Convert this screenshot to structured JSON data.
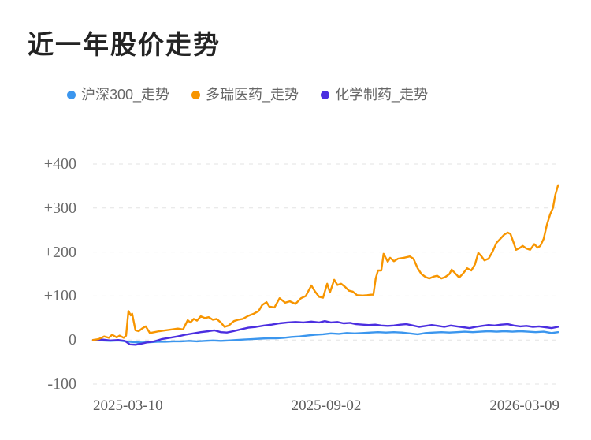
{
  "header": {
    "title": "近一年股价走势"
  },
  "colors": {
    "background": "#ffffff",
    "title_text": "#232323",
    "legend_text": "#666666",
    "axis_text": "#6b6b6b",
    "gridline": "#e3e3e3",
    "series_csi300": "#3B96EE",
    "series_duorui": "#F79500",
    "series_chempharma": "#4B2EE0"
  },
  "chart_data": {
    "type": "line",
    "title": "近一年股价走势",
    "unit": "percent change since period start",
    "legend_position": "top",
    "grid": {
      "horizontal": true,
      "vertical": false,
      "style": "dashed"
    },
    "x_axis": {
      "tick_labels": [
        "2025-03-10",
        "2025-09-02",
        "2026-03-09"
      ],
      "note": "t values in series are 0..1 fractions of the date range 2025-03-10 to 2026-03-09"
    },
    "y_axis": {
      "tick_values": [
        400,
        300,
        200,
        100,
        0,
        -100
      ],
      "tick_labels": [
        "+400",
        "+300",
        "+200",
        "+100",
        "0",
        "-100"
      ],
      "lim": [
        -100,
        400
      ]
    },
    "series": [
      {
        "name": "沪深300_走势",
        "color": "#3B96EE",
        "points": [
          [
            0,
            0
          ],
          [
            0.02,
            -1
          ],
          [
            0.037,
            -2
          ],
          [
            0.054,
            -1
          ],
          [
            0.071,
            -3
          ],
          [
            0.088,
            -5
          ],
          [
            0.105,
            -6
          ],
          [
            0.122,
            -5
          ],
          [
            0.139,
            -4
          ],
          [
            0.155,
            -4
          ],
          [
            0.172,
            -3
          ],
          [
            0.189,
            -3
          ],
          [
            0.206,
            -2
          ],
          [
            0.223,
            -3
          ],
          [
            0.24,
            -2
          ],
          [
            0.257,
            -1
          ],
          [
            0.274,
            -2
          ],
          [
            0.291,
            -1
          ],
          [
            0.307,
            0
          ],
          [
            0.324,
            1
          ],
          [
            0.341,
            2
          ],
          [
            0.358,
            3
          ],
          [
            0.375,
            4
          ],
          [
            0.392,
            4
          ],
          [
            0.409,
            5
          ],
          [
            0.426,
            7
          ],
          [
            0.443,
            8
          ],
          [
            0.459,
            10
          ],
          [
            0.476,
            12
          ],
          [
            0.493,
            13
          ],
          [
            0.51,
            15
          ],
          [
            0.527,
            14
          ],
          [
            0.544,
            16
          ],
          [
            0.561,
            15
          ],
          [
            0.578,
            16
          ],
          [
            0.595,
            17
          ],
          [
            0.611,
            18
          ],
          [
            0.628,
            17
          ],
          [
            0.645,
            18
          ],
          [
            0.662,
            17
          ],
          [
            0.679,
            15
          ],
          [
            0.696,
            13
          ],
          [
            0.713,
            16
          ],
          [
            0.73,
            17
          ],
          [
            0.747,
            18
          ],
          [
            0.764,
            17
          ],
          [
            0.78,
            18
          ],
          [
            0.797,
            19
          ],
          [
            0.814,
            18
          ],
          [
            0.831,
            19
          ],
          [
            0.848,
            20
          ],
          [
            0.865,
            19
          ],
          [
            0.882,
            20
          ],
          [
            0.899,
            19
          ],
          [
            0.916,
            20
          ],
          [
            0.932,
            19
          ],
          [
            0.949,
            18
          ],
          [
            0.966,
            19
          ],
          [
            0.983,
            16
          ],
          [
            0.997,
            18
          ]
        ]
      },
      {
        "name": "多瑞医药_走势",
        "color": "#F79500",
        "points": [
          [
            0,
            0
          ],
          [
            0.012,
            2
          ],
          [
            0.024,
            8
          ],
          [
            0.034,
            5
          ],
          [
            0.041,
            12
          ],
          [
            0.051,
            6
          ],
          [
            0.057,
            10
          ],
          [
            0.066,
            5
          ],
          [
            0.071,
            10
          ],
          [
            0.076,
            66
          ],
          [
            0.081,
            56
          ],
          [
            0.084,
            60
          ],
          [
            0.091,
            22
          ],
          [
            0.098,
            20
          ],
          [
            0.105,
            26
          ],
          [
            0.113,
            31
          ],
          [
            0.122,
            16
          ],
          [
            0.132,
            18
          ],
          [
            0.142,
            20
          ],
          [
            0.155,
            22
          ],
          [
            0.169,
            24
          ],
          [
            0.182,
            26
          ],
          [
            0.193,
            24
          ],
          [
            0.203,
            45
          ],
          [
            0.209,
            40
          ],
          [
            0.216,
            48
          ],
          [
            0.223,
            44
          ],
          [
            0.231,
            54
          ],
          [
            0.24,
            50
          ],
          [
            0.248,
            52
          ],
          [
            0.257,
            46
          ],
          [
            0.265,
            48
          ],
          [
            0.274,
            40
          ],
          [
            0.282,
            30
          ],
          [
            0.291,
            33
          ],
          [
            0.302,
            43
          ],
          [
            0.311,
            46
          ],
          [
            0.321,
            48
          ],
          [
            0.333,
            55
          ],
          [
            0.345,
            60
          ],
          [
            0.355,
            66
          ],
          [
            0.363,
            80
          ],
          [
            0.372,
            86
          ],
          [
            0.378,
            76
          ],
          [
            0.389,
            74
          ],
          [
            0.4,
            95
          ],
          [
            0.412,
            85
          ],
          [
            0.422,
            88
          ],
          [
            0.434,
            82
          ],
          [
            0.446,
            95
          ],
          [
            0.456,
            100
          ],
          [
            0.468,
            124
          ],
          [
            0.476,
            110
          ],
          [
            0.485,
            98
          ],
          [
            0.493,
            96
          ],
          [
            0.502,
            128
          ],
          [
            0.508,
            108
          ],
          [
            0.517,
            137
          ],
          [
            0.524,
            125
          ],
          [
            0.532,
            128
          ],
          [
            0.541,
            120
          ],
          [
            0.549,
            112
          ],
          [
            0.557,
            110
          ],
          [
            0.566,
            102
          ],
          [
            0.578,
            101
          ],
          [
            0.588,
            102
          ],
          [
            0.596,
            103
          ],
          [
            0.601,
            103
          ],
          [
            0.606,
            140
          ],
          [
            0.611,
            158
          ],
          [
            0.618,
            158
          ],
          [
            0.623,
            196
          ],
          [
            0.632,
            178
          ],
          [
            0.637,
            187
          ],
          [
            0.645,
            179
          ],
          [
            0.654,
            185
          ],
          [
            0.666,
            187
          ],
          [
            0.679,
            190
          ],
          [
            0.687,
            185
          ],
          [
            0.696,
            163
          ],
          [
            0.704,
            150
          ],
          [
            0.713,
            143
          ],
          [
            0.721,
            140
          ],
          [
            0.73,
            144
          ],
          [
            0.738,
            146
          ],
          [
            0.747,
            140
          ],
          [
            0.755,
            143
          ],
          [
            0.764,
            150
          ],
          [
            0.769,
            160
          ],
          [
            0.777,
            151
          ],
          [
            0.785,
            142
          ],
          [
            0.794,
            152
          ],
          [
            0.802,
            163
          ],
          [
            0.811,
            158
          ],
          [
            0.819,
            172
          ],
          [
            0.826,
            198
          ],
          [
            0.833,
            190
          ],
          [
            0.839,
            181
          ],
          [
            0.848,
            185
          ],
          [
            0.856,
            200
          ],
          [
            0.865,
            221
          ],
          [
            0.873,
            230
          ],
          [
            0.882,
            240
          ],
          [
            0.889,
            244
          ],
          [
            0.895,
            241
          ],
          [
            0.902,
            220
          ],
          [
            0.907,
            205
          ],
          [
            0.916,
            210
          ],
          [
            0.921,
            214
          ],
          [
            0.929,
            208
          ],
          [
            0.937,
            205
          ],
          [
            0.946,
            218
          ],
          [
            0.953,
            210
          ],
          [
            0.959,
            214
          ],
          [
            0.966,
            230
          ],
          [
            0.973,
            262
          ],
          [
            0.98,
            286
          ],
          [
            0.986,
            300
          ],
          [
            0.991,
            330
          ],
          [
            0.997,
            352
          ]
        ]
      },
      {
        "name": "化学制药_走势",
        "color": "#4B2EE0",
        "points": [
          [
            0,
            0
          ],
          [
            0.02,
            1
          ],
          [
            0.037,
            -1
          ],
          [
            0.054,
            0
          ],
          [
            0.068,
            -2
          ],
          [
            0.079,
            -10
          ],
          [
            0.091,
            -11
          ],
          [
            0.105,
            -8
          ],
          [
            0.118,
            -5
          ],
          [
            0.132,
            -3
          ],
          [
            0.147,
            2
          ],
          [
            0.164,
            5
          ],
          [
            0.181,
            8
          ],
          [
            0.198,
            12
          ],
          [
            0.215,
            15
          ],
          [
            0.231,
            18
          ],
          [
            0.248,
            20
          ],
          [
            0.26,
            22
          ],
          [
            0.274,
            18
          ],
          [
            0.287,
            17
          ],
          [
            0.301,
            20
          ],
          [
            0.316,
            24
          ],
          [
            0.333,
            28
          ],
          [
            0.35,
            30
          ],
          [
            0.367,
            33
          ],
          [
            0.383,
            35
          ],
          [
            0.4,
            38
          ],
          [
            0.417,
            40
          ],
          [
            0.434,
            41
          ],
          [
            0.451,
            40
          ],
          [
            0.468,
            42
          ],
          [
            0.485,
            40
          ],
          [
            0.497,
            43
          ],
          [
            0.51,
            40
          ],
          [
            0.524,
            41
          ],
          [
            0.537,
            38
          ],
          [
            0.551,
            39
          ],
          [
            0.564,
            36
          ],
          [
            0.578,
            35
          ],
          [
            0.591,
            34
          ],
          [
            0.605,
            35
          ],
          [
            0.618,
            33
          ],
          [
            0.632,
            32
          ],
          [
            0.645,
            33
          ],
          [
            0.659,
            35
          ],
          [
            0.672,
            36
          ],
          [
            0.686,
            33
          ],
          [
            0.699,
            30
          ],
          [
            0.713,
            32
          ],
          [
            0.726,
            34
          ],
          [
            0.74,
            32
          ],
          [
            0.753,
            30
          ],
          [
            0.767,
            33
          ],
          [
            0.78,
            31
          ],
          [
            0.794,
            29
          ],
          [
            0.807,
            27
          ],
          [
            0.821,
            30
          ],
          [
            0.834,
            32
          ],
          [
            0.848,
            34
          ],
          [
            0.861,
            33
          ],
          [
            0.875,
            35
          ],
          [
            0.889,
            36
          ],
          [
            0.902,
            33
          ],
          [
            0.916,
            31
          ],
          [
            0.929,
            32
          ],
          [
            0.943,
            30
          ],
          [
            0.956,
            31
          ],
          [
            0.97,
            29
          ],
          [
            0.983,
            27
          ],
          [
            0.997,
            30
          ]
        ]
      }
    ]
  }
}
